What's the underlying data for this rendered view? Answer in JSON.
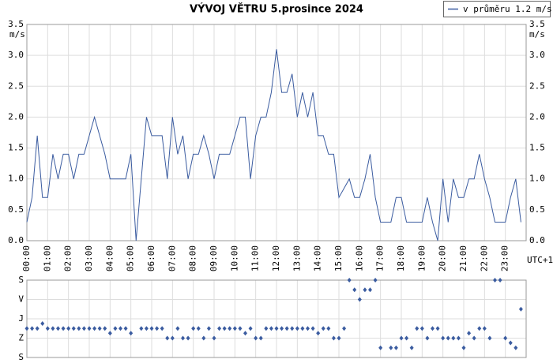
{
  "chart_data": [
    {
      "type": "line",
      "title": "VÝVOJ VĚTRU  5.prosince 2024",
      "y_label": "m/s",
      "x_label": "UTC+1",
      "grid": true,
      "xlim": [
        0,
        24
      ],
      "xticks": [
        {
          "value": 0,
          "label": "00:00"
        },
        {
          "value": 1,
          "label": "01:00"
        },
        {
          "value": 2,
          "label": "02:00"
        },
        {
          "value": 3,
          "label": "03:00"
        },
        {
          "value": 4,
          "label": "04:00"
        },
        {
          "value": 5,
          "label": "05:00"
        },
        {
          "value": 6,
          "label": "06:00"
        },
        {
          "value": 7,
          "label": "07:00"
        },
        {
          "value": 8,
          "label": "08:00"
        },
        {
          "value": 9,
          "label": "09:00"
        },
        {
          "value": 10,
          "label": "10:00"
        },
        {
          "value": 11,
          "label": "11:00"
        },
        {
          "value": 12,
          "label": "12:00"
        },
        {
          "value": 13,
          "label": "13:00"
        },
        {
          "value": 14,
          "label": "14:00"
        },
        {
          "value": 15,
          "label": "15:00"
        },
        {
          "value": 16,
          "label": "16:00"
        },
        {
          "value": 17,
          "label": "17:00"
        },
        {
          "value": 18,
          "label": "18:00"
        },
        {
          "value": 19,
          "label": "19:00"
        },
        {
          "value": 20,
          "label": "20:00"
        },
        {
          "value": 21,
          "label": "21:00"
        },
        {
          "value": 22,
          "label": "22:00"
        },
        {
          "value": 23,
          "label": "23:00"
        }
      ],
      "ylim": [
        0,
        3.5
      ],
      "yticks": [
        {
          "value": 0,
          "label": "0.0"
        },
        0.5,
        {
          "value": 1,
          "label": "1.0"
        },
        1.5,
        {
          "value": 2,
          "label": "2.0"
        },
        2.5,
        {
          "value": 3,
          "label": "3.0"
        },
        3.5
      ],
      "x": [
        0,
        0.25,
        0.5,
        0.75,
        1,
        1.25,
        1.5,
        1.75,
        2,
        2.25,
        2.5,
        2.75,
        3,
        3.25,
        3.5,
        3.75,
        4,
        4.25,
        4.5,
        4.75,
        5,
        5.25,
        5.5,
        5.75,
        6,
        6.25,
        6.5,
        6.75,
        7,
        7.25,
        7.5,
        7.75,
        8,
        8.25,
        8.5,
        8.75,
        9,
        9.25,
        9.5,
        9.75,
        10,
        10.25,
        10.5,
        10.75,
        11,
        11.25,
        11.5,
        11.75,
        12,
        12.25,
        12.5,
        12.75,
        13,
        13.25,
        13.5,
        13.75,
        14,
        14.25,
        14.5,
        14.75,
        15,
        15.25,
        15.5,
        15.75,
        16,
        16.25,
        16.5,
        16.75,
        17,
        17.25,
        17.5,
        17.75,
        18,
        18.25,
        18.5,
        18.75,
        19,
        19.25,
        19.5,
        19.75,
        20,
        20.25,
        20.5,
        20.75,
        21,
        21.25,
        21.5,
        21.75,
        22,
        22.25,
        22.5,
        22.75,
        23,
        23.25,
        23.5,
        23.75
      ],
      "series": [
        {
          "name": "v průměru 1.2 m/s",
          "color": "#3b5ca0",
          "values": [
            0.3,
            0.7,
            1.7,
            0.7,
            0.7,
            1.4,
            1.0,
            1.4,
            1.4,
            1.0,
            1.4,
            1.4,
            1.7,
            2.0,
            1.7,
            1.4,
            1.0,
            1.0,
            1.0,
            1.0,
            1.4,
            0.0,
            1.0,
            2.0,
            1.7,
            1.7,
            1.7,
            1.0,
            2.0,
            1.4,
            1.7,
            1.0,
            1.4,
            1.4,
            1.7,
            1.4,
            1.0,
            1.4,
            1.4,
            1.4,
            1.7,
            2.0,
            2.0,
            1.0,
            1.7,
            2.0,
            2.0,
            2.4,
            3.1,
            2.4,
            2.4,
            2.7,
            2.0,
            2.4,
            2.0,
            2.4,
            1.7,
            1.7,
            1.4,
            1.4,
            0.7,
            0.85,
            1.0,
            0.7,
            0.7,
            1.0,
            1.4,
            0.7,
            0.3,
            0.3,
            0.3,
            0.7,
            0.7,
            0.3,
            0.3,
            0.3,
            0.3,
            0.7,
            0.3,
            0.0,
            1.0,
            0.3,
            1.0,
            0.7,
            0.7,
            1.0,
            1.0,
            1.4,
            1.0,
            0.7,
            0.3,
            0.3,
            0.3,
            0.7,
            1.0,
            0.3
          ]
        }
      ]
    },
    {
      "type": "scatter",
      "grid": true,
      "xlim": [
        0,
        24
      ],
      "ylim": [
        360,
        0
      ],
      "yticks": [
        {
          "value": 0,
          "label": "S"
        },
        {
          "value": 90,
          "label": "V"
        },
        {
          "value": 180,
          "label": "J"
        },
        {
          "value": 270,
          "label": "Z"
        },
        {
          "value": 360,
          "label": "S"
        }
      ],
      "x": [
        0,
        0.25,
        0.5,
        0.75,
        1,
        1.25,
        1.5,
        1.75,
        2,
        2.25,
        2.5,
        2.75,
        3,
        3.25,
        3.5,
        3.75,
        4,
        4.25,
        4.5,
        4.75,
        5,
        5.25,
        5.5,
        5.75,
        6,
        6.25,
        6.5,
        6.75,
        7,
        7.25,
        7.5,
        7.75,
        8,
        8.25,
        8.5,
        8.75,
        9,
        9.25,
        9.5,
        9.75,
        10,
        10.25,
        10.5,
        10.75,
        11,
        11.25,
        11.5,
        11.75,
        12,
        12.25,
        12.5,
        12.75,
        13,
        13.25,
        13.5,
        13.75,
        14,
        14.25,
        14.5,
        14.75,
        15,
        15.25,
        15.5,
        15.75,
        16,
        16.25,
        16.5,
        16.75,
        17,
        17.25,
        17.5,
        17.75,
        18,
        18.25,
        18.5,
        18.75,
        19,
        19.25,
        19.5,
        19.75,
        20,
        20.25,
        20.5,
        20.75,
        21,
        21.25,
        21.5,
        21.75,
        22,
        22.25,
        22.5,
        22.75,
        23,
        23.25,
        23.5,
        23.75
      ],
      "series": [
        {
          "color": "#3b5ca0",
          "values": [
            225,
            225,
            225,
            202,
            225,
            225,
            225,
            225,
            225,
            225,
            225,
            225,
            225,
            225,
            225,
            225,
            247,
            225,
            225,
            225,
            247,
            null,
            225,
            225,
            225,
            225,
            225,
            270,
            270,
            225,
            270,
            270,
            225,
            225,
            270,
            225,
            270,
            225,
            225,
            225,
            225,
            225,
            247,
            225,
            270,
            270,
            225,
            225,
            225,
            225,
            225,
            225,
            225,
            225,
            225,
            225,
            247,
            225,
            225,
            270,
            270,
            225,
            0,
            45,
            90,
            45,
            45,
            0,
            315,
            null,
            315,
            315,
            270,
            270,
            315,
            225,
            225,
            270,
            225,
            225,
            270,
            270,
            270,
            270,
            315,
            247,
            270,
            225,
            225,
            270,
            0,
            0,
            270,
            292,
            315,
            135
          ]
        }
      ]
    }
  ]
}
